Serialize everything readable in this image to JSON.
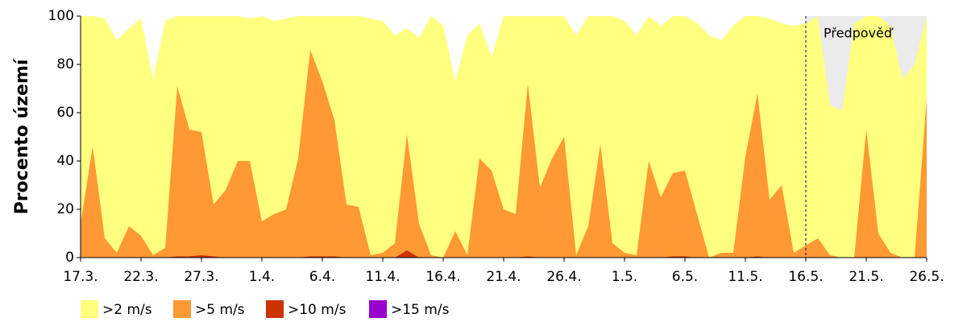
{
  "chart_data": {
    "type": "area",
    "y_label": "Procento území",
    "categories": [
      "17.3.",
      null,
      null,
      null,
      null,
      "22.3.",
      null,
      null,
      null,
      null,
      "27.3.",
      null,
      null,
      null,
      null,
      "1.4.",
      null,
      null,
      null,
      null,
      "6.4.",
      null,
      null,
      null,
      null,
      "11.4.",
      null,
      null,
      null,
      null,
      "16.4.",
      null,
      null,
      null,
      null,
      "21.4.",
      null,
      null,
      null,
      null,
      "26.4.",
      null,
      null,
      null,
      null,
      "1.5.",
      null,
      null,
      null,
      null,
      "6.5.",
      null,
      null,
      null,
      null,
      "11.5.",
      null,
      null,
      null,
      null,
      "16.5.",
      null,
      null,
      null,
      null,
      "21.5.",
      null,
      null,
      null,
      null,
      "26.5."
    ],
    "series": [
      {
        "name": ">2 m/s",
        "color": "#ffff80",
        "values": [
          100,
          100,
          99,
          90,
          95,
          99,
          74,
          98,
          100,
          100,
          100,
          100,
          100,
          100,
          99,
          100,
          98,
          99,
          100,
          100,
          100,
          100,
          100,
          100,
          99,
          98,
          92,
          95,
          91,
          100,
          96,
          73,
          92,
          97,
          83,
          100,
          100,
          100,
          100,
          100,
          100,
          92,
          100,
          100,
          100,
          98,
          92,
          100,
          96,
          100,
          100,
          97,
          92,
          90,
          96,
          100,
          100,
          99,
          97,
          96,
          97,
          100,
          63,
          61,
          97,
          100,
          100,
          96,
          74,
          80,
          100
        ]
      },
      {
        "name": ">5 m/s",
        "color": "#ff9933",
        "values": [
          14,
          46,
          8,
          2,
          13,
          9,
          1,
          4,
          71,
          53,
          52,
          22,
          28,
          40,
          40,
          15,
          18,
          20,
          41,
          86,
          73,
          57,
          22,
          21,
          1,
          2,
          6,
          51,
          14,
          1,
          0,
          11,
          1,
          41,
          36,
          20,
          18,
          72,
          29,
          41,
          50,
          1,
          13,
          47,
          6,
          2,
          1,
          40,
          25,
          35,
          36,
          18,
          0,
          2,
          2,
          42,
          68,
          24,
          30,
          2,
          5,
          8,
          1,
          0,
          0,
          53,
          10,
          2,
          0,
          0,
          66
        ]
      },
      {
        "name": ">10 m/s",
        "color": "#cc3300",
        "values": [
          0,
          0,
          0,
          0,
          0,
          0,
          0,
          0,
          0.5,
          0.5,
          1,
          0.5,
          0,
          0,
          0,
          0,
          0,
          0,
          0,
          0.5,
          0.5,
          0.5,
          0,
          0,
          0,
          0,
          0,
          3,
          0,
          0,
          0,
          0,
          0,
          0,
          0,
          0,
          0,
          0.5,
          0,
          0,
          0,
          0,
          0,
          0,
          0,
          0,
          0,
          0,
          0,
          0.5,
          0.5,
          0,
          0,
          0,
          0,
          0,
          0.5,
          0,
          0,
          0,
          0,
          0,
          0,
          0,
          0,
          0,
          0,
          0,
          0,
          0,
          0
        ]
      },
      {
        "name": ">15 m/s",
        "color": "#9900cc",
        "values": [
          0,
          0,
          0,
          0,
          0,
          0,
          0,
          0,
          0,
          0,
          0,
          0,
          0,
          0,
          0,
          0,
          0,
          0,
          0,
          0,
          0,
          0,
          0,
          0,
          0,
          0,
          0,
          0,
          0,
          0,
          0,
          0,
          0,
          0,
          0,
          0,
          0,
          0,
          0,
          0,
          0,
          0,
          0,
          0,
          0,
          0,
          0,
          0,
          0,
          0,
          0,
          0,
          0,
          0,
          0,
          0,
          0,
          0,
          0,
          0,
          0,
          0,
          0,
          0,
          0,
          0,
          0,
          0,
          0,
          0,
          0
        ]
      }
    ],
    "ylim": [
      0,
      100
    ],
    "yticks": [
      0,
      20,
      40,
      60,
      80,
      100
    ],
    "annotation": {
      "text": "Předpověď",
      "from": "16.5."
    }
  }
}
